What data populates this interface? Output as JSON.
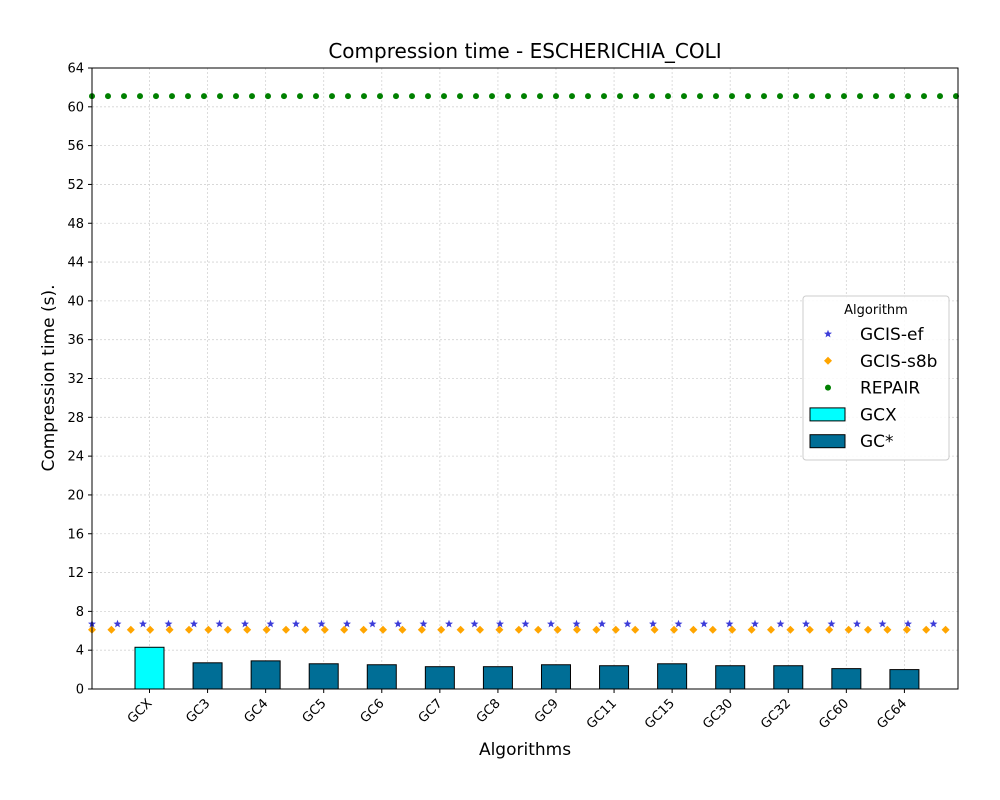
{
  "chart_data": {
    "type": "bar",
    "title": "Compression time -  ESCHERICHIA_COLI",
    "xlabel": "Algorithms",
    "ylabel": "Compression time (s).",
    "ylim": [
      0,
      64
    ],
    "yticks": [
      0,
      4,
      8,
      12,
      16,
      20,
      24,
      28,
      32,
      36,
      40,
      44,
      48,
      52,
      56,
      60,
      64
    ],
    "grid": true,
    "categories": [
      "GCX",
      "GC3",
      "GC4",
      "GC5",
      "GC6",
      "GC7",
      "GC8",
      "GC9",
      "GC11",
      "GC15",
      "GC30",
      "GC32",
      "GC60",
      "GC64"
    ],
    "series": [
      {
        "name": "GCX",
        "kind": "bar",
        "color": "#00ffff",
        "values": [
          4.3,
          null,
          null,
          null,
          null,
          null,
          null,
          null,
          null,
          null,
          null,
          null,
          null,
          null
        ]
      },
      {
        "name": "GC*",
        "kind": "bar",
        "color": "#006e96",
        "values": [
          null,
          2.7,
          2.9,
          2.6,
          2.5,
          2.3,
          2.3,
          2.5,
          2.4,
          2.6,
          2.4,
          2.4,
          2.1,
          2.0
        ]
      },
      {
        "name": "GCIS-ef",
        "kind": "reference-line",
        "marker": "star",
        "color": "#3d3dd9",
        "value": 6.7
      },
      {
        "name": "GCIS-s8b",
        "kind": "reference-line",
        "marker": "diamond",
        "color": "#ffa500",
        "value": 6.1
      },
      {
        "name": "REPAIR",
        "kind": "reference-line",
        "marker": "circle",
        "color": "#008000",
        "value": 61.1
      }
    ],
    "legend": {
      "title": "Algorithm",
      "position": "center-right",
      "entries": [
        "GCIS-ef",
        "GCIS-s8b",
        "REPAIR",
        "GCX",
        "GC*"
      ]
    }
  }
}
